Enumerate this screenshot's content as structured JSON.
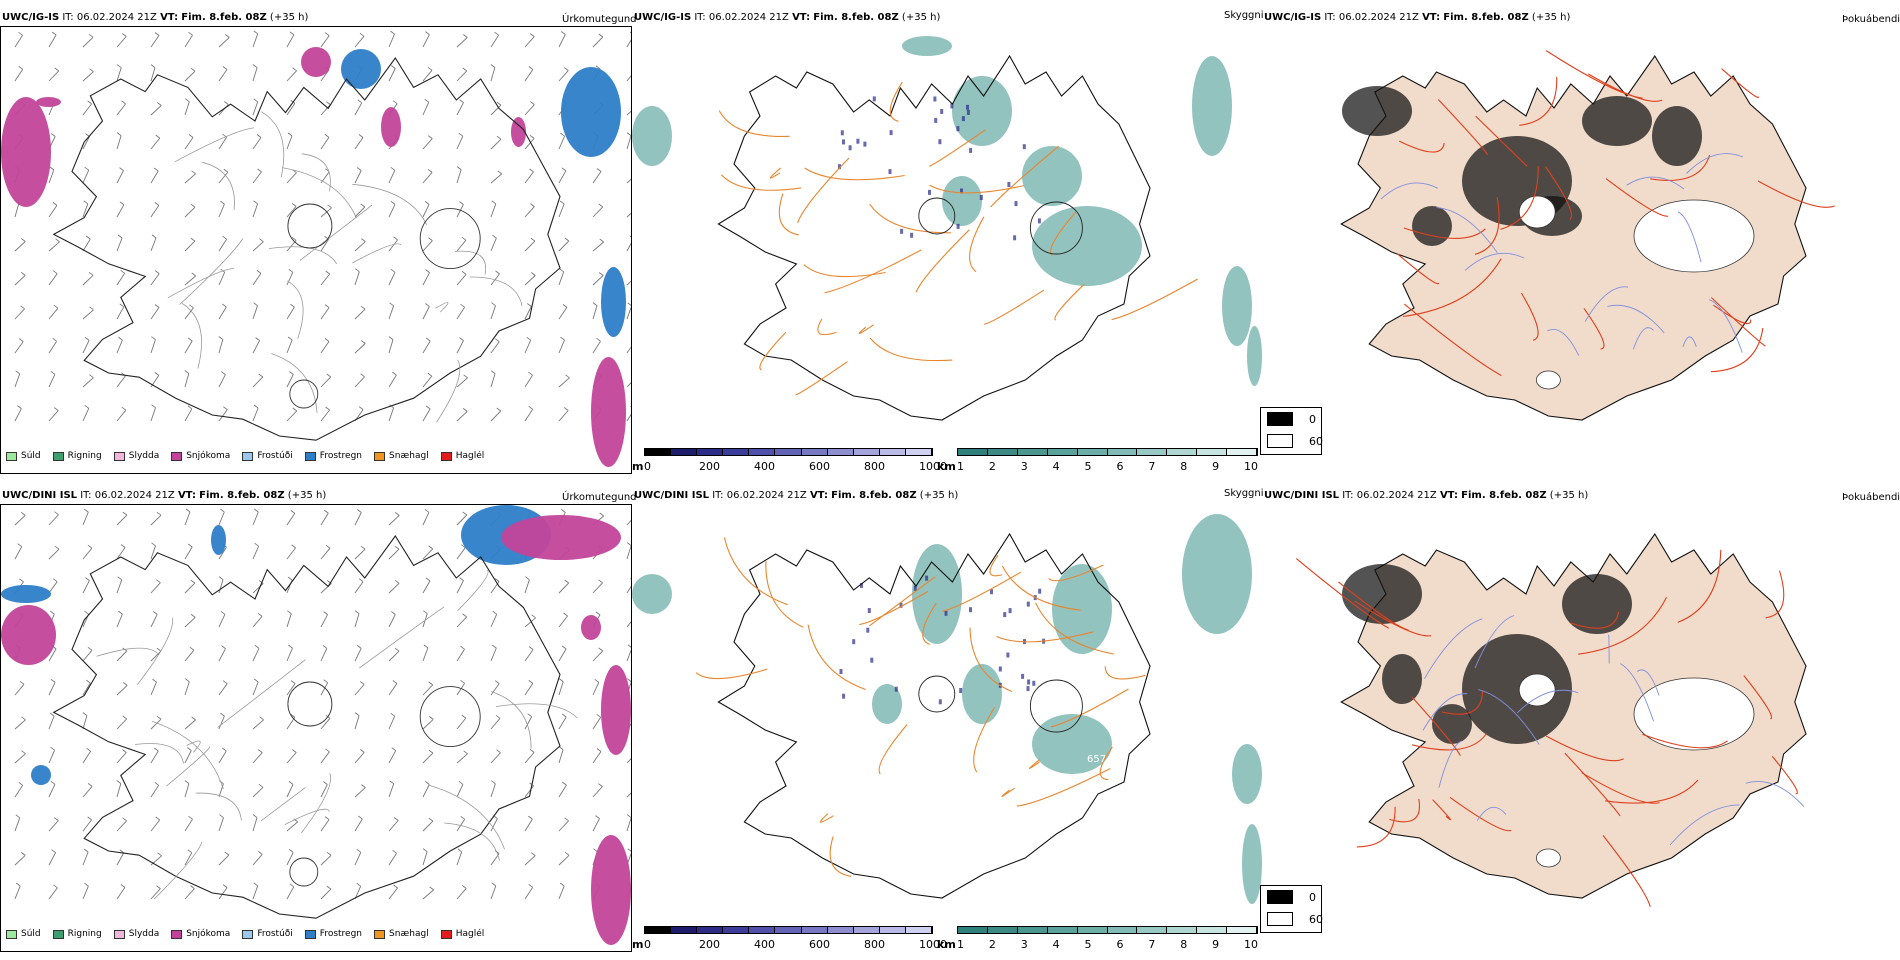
{
  "rows": [
    {
      "precip": {
        "model": "UWC/IG-IS",
        "it_label": "IT:",
        "it_value": "06.02.2024 21Z",
        "vt_label": "VT:",
        "vt_value": "Fim. 8.feb. 08Z",
        "lead": "(+35 h)",
        "title": "Úrkomutegund"
      },
      "cloud": {
        "model": "UWC/IG-IS",
        "it_label": "IT:",
        "it_value": "06.02.2024 21Z",
        "vt_label": "VT:",
        "vt_value": "Fim. 8.feb. 08Z",
        "lead": "(+35 h)",
        "title": "Skyggni"
      },
      "fog": {
        "model": "UWC/IG-IS",
        "it_label": "IT:",
        "it_value": "06.02.2024 21Z",
        "vt_label": "VT:",
        "vt_value": "Fim. 8.feb. 08Z",
        "lead": "(+35 h)",
        "title": "Þokuábendi"
      }
    },
    {
      "precip": {
        "model": "UWC/DINI ISL",
        "it_label": "IT:",
        "it_value": "06.02.2024 21Z",
        "vt_label": "VT:",
        "vt_value": "Fim. 8.feb. 08Z",
        "lead": "(+35 h)",
        "title": "Úrkomutegund"
      },
      "cloud": {
        "model": "UWC/DINI ISL",
        "it_label": "IT:",
        "it_value": "06.02.2024 21Z",
        "vt_label": "VT:",
        "vt_value": "Fim. 8.feb. 08Z",
        "lead": "(+35 h)",
        "title": "Skyggni",
        "annotation": "657"
      },
      "fog": {
        "model": "UWC/DINI ISL",
        "it_label": "IT:",
        "it_value": "06.02.2024 21Z",
        "vt_label": "VT:",
        "vt_value": "Fim. 8.feb. 08Z",
        "lead": "(+35 h)",
        "title": "Þokuábendi"
      }
    }
  ],
  "precip_legend": [
    {
      "label": "Súld",
      "color": "#9ee89e"
    },
    {
      "label": "Rigning",
      "color": "#3e9e6e"
    },
    {
      "label": "Slydda",
      "color": "#f2b6d8"
    },
    {
      "label": "Snjókoma",
      "color": "#c2449a"
    },
    {
      "label": "Frostúði",
      "color": "#9cc8ee"
    },
    {
      "label": "Frostregn",
      "color": "#2e7ec8"
    },
    {
      "label": "Snæhagl",
      "color": "#f0961e"
    },
    {
      "label": "Haglél",
      "color": "#e01c1c"
    }
  ],
  "cloudbase_bar": {
    "unit": "m",
    "ticks": [
      "0",
      "200",
      "400",
      "600",
      "800",
      "1000"
    ],
    "colors": [
      "#000000",
      "#1c1c6a",
      "#2c2c88",
      "#3c3c9a",
      "#5050aa",
      "#6464b6",
      "#7878c2",
      "#8e8ece",
      "#a4a4da",
      "#babae6",
      "#d0d0f0"
    ]
  },
  "visibility_bar": {
    "unit": "km",
    "ticks": [
      "1",
      "2",
      "3",
      "4",
      "5",
      "6",
      "7",
      "8",
      "9",
      "10"
    ],
    "colors": [
      "#2f7f7a",
      "#3d8a85",
      "#4c9690",
      "#5ca29c",
      "#6eaea8",
      "#82bab5",
      "#98c8c3",
      "#b0d6d2",
      "#c8e4e1",
      "#e2f2f0"
    ]
  },
  "fog_legend": [
    {
      "label": "0",
      "color": "#000000"
    },
    {
      "label": "60",
      "color": "#ffffff"
    }
  ],
  "colors": {
    "snow": "#c2449a",
    "frz_rain": "#2e7ec8",
    "vis_teal": "#3a928a",
    "low_cloud": "#2a2a8a",
    "roads_orange": "#e8862e",
    "roads_red": "#e0401c",
    "rivers": "#8090e0",
    "land_fog": "#f1dccb"
  }
}
